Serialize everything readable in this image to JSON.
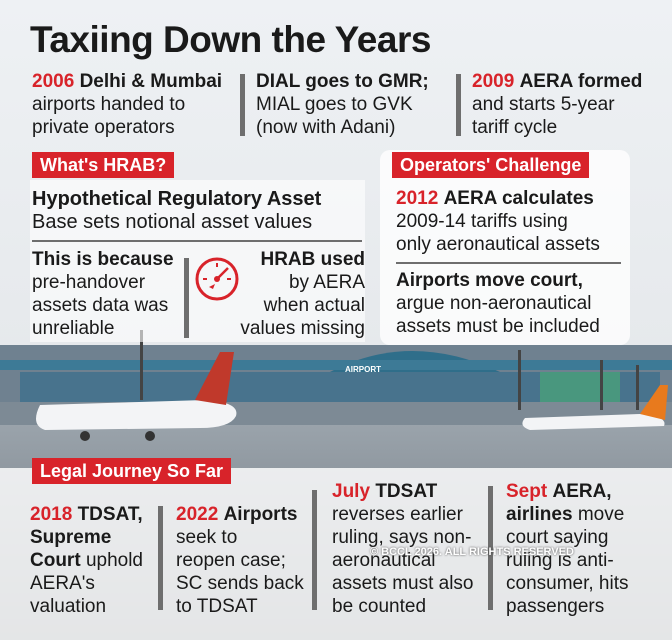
{
  "title": "Taxiing Down the Years",
  "timeline_top": [
    {
      "year": "2006",
      "bold": "Delhi & Mumbai",
      "lines": [
        "airports handed to",
        "private operators"
      ]
    },
    {
      "lines": [
        "DIAL goes to GMR;",
        "MIAL goes to GVK",
        "(now with Adani)"
      ]
    },
    {
      "year": "2009",
      "bold": "AERA formed",
      "lines": [
        "and starts 5-year",
        "tariff cycle"
      ]
    }
  ],
  "hrab": {
    "tag": "What's HRAB?",
    "heading": "Hypothetical Regulatory Asset",
    "sub": "Base sets notional asset values",
    "left_bold": "This is because",
    "left_lines": [
      "pre-handover",
      "assets data was",
      "unreliable"
    ],
    "right_bold": "HRAB used",
    "right_lines": [
      "by AERA",
      "when actual",
      "values missing"
    ]
  },
  "operators": {
    "tag": "Operators' Challenge",
    "item1_year": "2012",
    "item1_bold": "AERA calculates",
    "item1_lines": [
      "2009-14 tariffs using",
      "only aeronautical assets"
    ],
    "item2_bold": "Airports move court,",
    "item2_lines": [
      "argue non-aeronautical",
      "assets must be included"
    ]
  },
  "legal": {
    "tag": "Legal Journey So Far",
    "items": [
      {
        "year": "2018",
        "bold": "TDSAT, Supreme",
        "rest_bold": "Court",
        "rest": "uphold",
        "lines": [
          "AERA's",
          "valuation"
        ]
      },
      {
        "year": "2022",
        "bold": "Airports",
        "lines": [
          "seek to",
          "reopen case;",
          "SC sends back",
          "to TDSAT"
        ]
      },
      {
        "year": "July",
        "bold": "TDSAT",
        "lines": [
          "reverses earlier",
          "ruling, says non-",
          "aeronautical",
          "assets must also",
          "be counted"
        ]
      },
      {
        "year": "Sept",
        "bold": "AERA, airlines",
        "rest": "move",
        "lines": [
          "court saying",
          "ruling is anti-",
          "consumer, hits",
          "passengers"
        ]
      }
    ]
  },
  "copyright": "© BCCL 2026. ALL RIGHTS RESERVED",
  "airport_sign": "AIRPORT",
  "colors": {
    "accent": "#d8232a",
    "text": "#1a1a1a"
  }
}
